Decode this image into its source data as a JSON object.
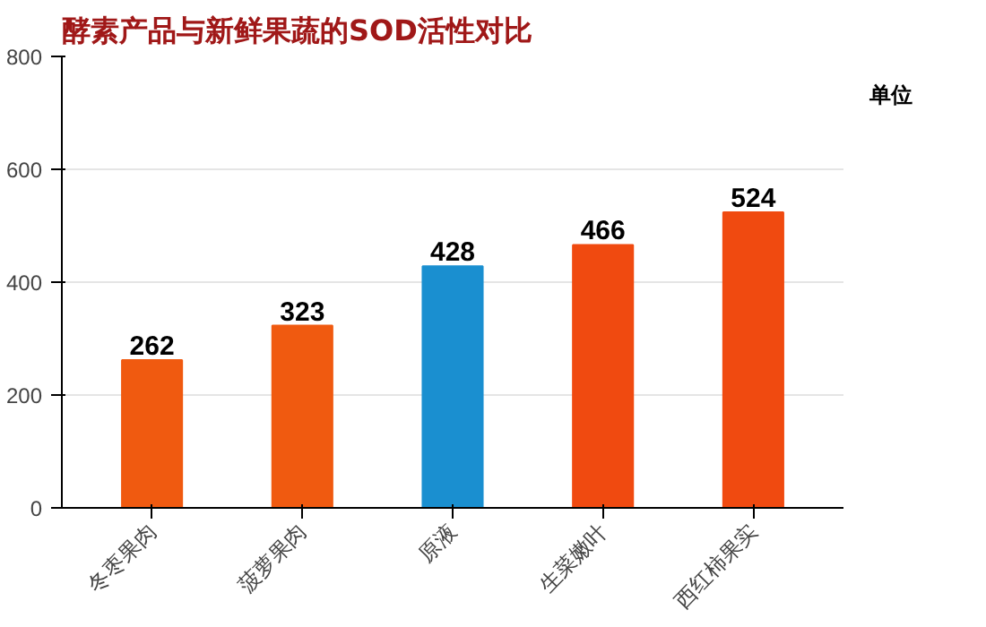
{
  "chart_data": {
    "type": "bar",
    "title": "酵素产品与新鲜果蔬的SOD活性对比",
    "categories": [
      "冬枣果肉",
      "菠萝果肉",
      "原液",
      "生菜嫩叶",
      "西红柿果实"
    ],
    "values": [
      262,
      323,
      428,
      466,
      524
    ],
    "colors": [
      "#f05a10",
      "#f05a10",
      "#1a8fd0",
      "#f04a10",
      "#f04a10"
    ],
    "ylim": [
      0,
      800
    ],
    "yticks": [
      0,
      200,
      400,
      600,
      800
    ],
    "grid": "y",
    "data_labels": true,
    "annotations": [
      "单位"
    ]
  }
}
